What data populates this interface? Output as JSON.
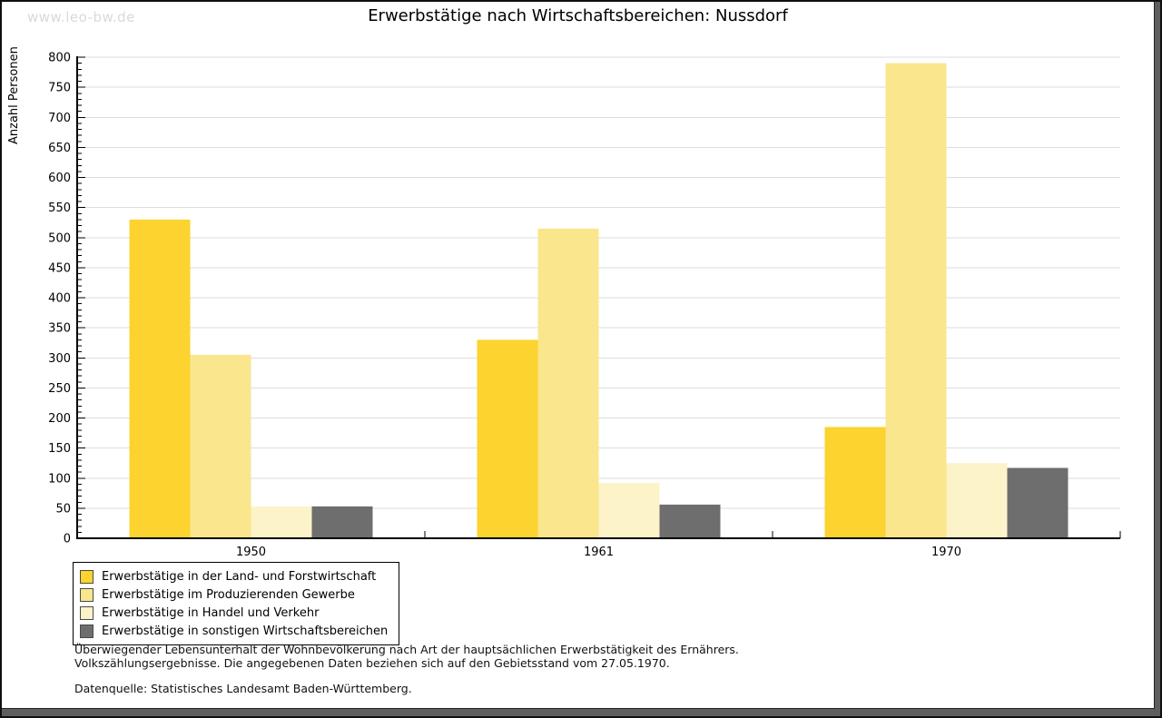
{
  "watermark": "www.leo-bw.de",
  "chart_data": {
    "type": "bar",
    "title": "Erwerbstätige nach Wirtschaftsbereichen: Nussdorf",
    "ylabel": "Anzahl Personen",
    "xlabel": "",
    "categories": [
      "1950",
      "1961",
      "1970"
    ],
    "series": [
      {
        "name": "Erwerbstätige in der Land- und Forstwirtschaft",
        "color": "#FCD32F",
        "values": [
          530,
          330,
          185
        ]
      },
      {
        "name": "Erwerbstätige im Produzierenden Gewerbe",
        "color": "#FAE68C",
        "values": [
          305,
          515,
          790
        ]
      },
      {
        "name": "Erwerbstätige in Handel und Verkehr",
        "color": "#FCF3C9",
        "values": [
          53,
          92,
          125
        ]
      },
      {
        "name": "Erwerbstätige in sonstigen Wirtschaftsbereichen",
        "color": "#6E6E6E",
        "values": [
          53,
          56,
          117
        ]
      }
    ],
    "ylim": [
      0,
      800
    ],
    "y_tick_step": 50,
    "y_minor_tick_step": 10,
    "grid": "horizontal",
    "gridline_color": "#DDDDDD",
    "axis_color": "#000000",
    "legend_position": "bottom-left"
  },
  "notes": {
    "line1": "Überwiegender Lebensunterhalt der Wohnbevölkerung nach Art der hauptsächlichen Erwerbstätigkeit des Ernährers.",
    "line2": "Volkszählungsergebnisse. Die angegebenen Daten beziehen sich auf den Gebietsstand vom 27.05.1970.",
    "line3": "Datenquelle: Statistisches Landesamt Baden-Württemberg."
  }
}
